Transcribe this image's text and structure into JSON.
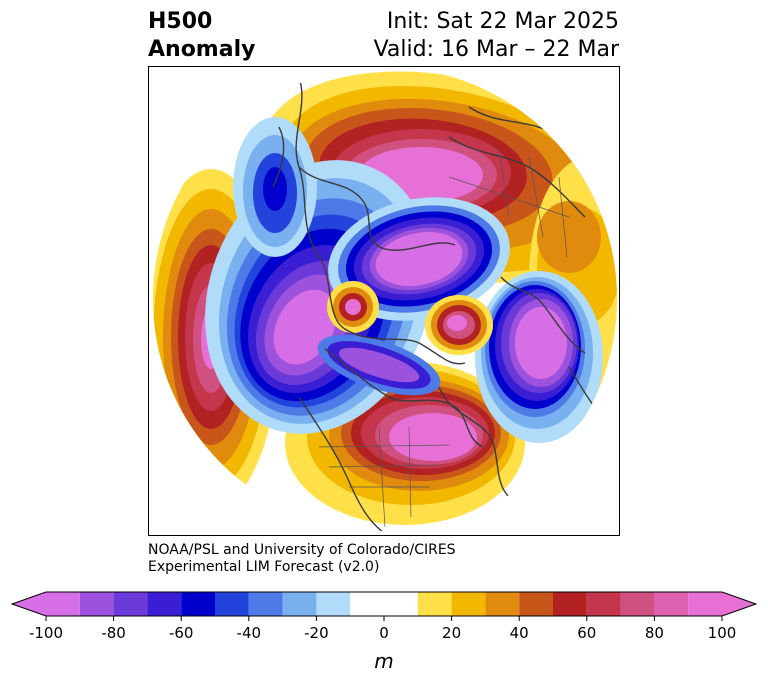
{
  "title": {
    "left_line1": "H500",
    "left_line2": "Anomaly",
    "right_line1": "Init: Sat 22 Mar 2025",
    "right_line2": "Valid: 16 Mar – 22 Mar"
  },
  "credit": {
    "line1": "NOAA/PSL and University of Colorado/CIRES",
    "line2": "Experimental LIM Forecast (v2.0)"
  },
  "colorbar": {
    "unit": "m",
    "min": -100,
    "max": 100,
    "ticks": [
      -100,
      -80,
      -60,
      -40,
      -20,
      0,
      20,
      40,
      60,
      80,
      100
    ],
    "tick_labels": [
      "-100",
      "-80",
      "-60",
      "-40",
      "-20",
      "0",
      "20",
      "40",
      "60",
      "80",
      "100"
    ],
    "levels": [
      -100,
      -90,
      -80,
      -70,
      -60,
      -50,
      -40,
      -30,
      -20,
      -10,
      10,
      20,
      30,
      40,
      50,
      60,
      70,
      80,
      90,
      100
    ],
    "colors": [
      "#d66ee6",
      "#9d52de",
      "#6a3ad8",
      "#3a1ed4",
      "#0000cc",
      "#2244dd",
      "#4e7ae8",
      "#78b0f0",
      "#b0dcfa",
      "#ffffff",
      "#ffe048",
      "#f2b800",
      "#e08a0e",
      "#c8561a",
      "#b22222",
      "#c4364c",
      "#d05080",
      "#dc62b0",
      "#e670d6"
    ],
    "extend": "both"
  },
  "map_data": {
    "projection": "north-polar-stereographic",
    "field": "500 hPa geopotential height anomaly",
    "anomaly_centers": [
      {
        "region": "Northern Siberia / Arctic Russia",
        "sign": "positive",
        "approx_value": 90
      },
      {
        "region": "Eastern North Pacific / Gulf of Alaska",
        "sign": "positive",
        "approx_value": 90
      },
      {
        "region": "Eastern United States",
        "sign": "positive",
        "approx_value": 90
      },
      {
        "region": "Greenland",
        "sign": "positive",
        "approx_value": 60
      },
      {
        "region": "Northeast Atlantic",
        "sign": "positive",
        "approx_value": 80
      },
      {
        "region": "Central Arctic / Kara Sea",
        "sign": "negative",
        "approx_value": -100
      },
      {
        "region": "Western North Pacific / Kamchatka",
        "sign": "negative",
        "approx_value": -100
      },
      {
        "region": "Canada / Hudson Bay",
        "sign": "negative",
        "approx_value": -100
      },
      {
        "region": "Europe",
        "sign": "negative",
        "approx_value": -100
      },
      {
        "region": "Central Asia",
        "sign": "negative",
        "approx_value": -60
      }
    ]
  }
}
